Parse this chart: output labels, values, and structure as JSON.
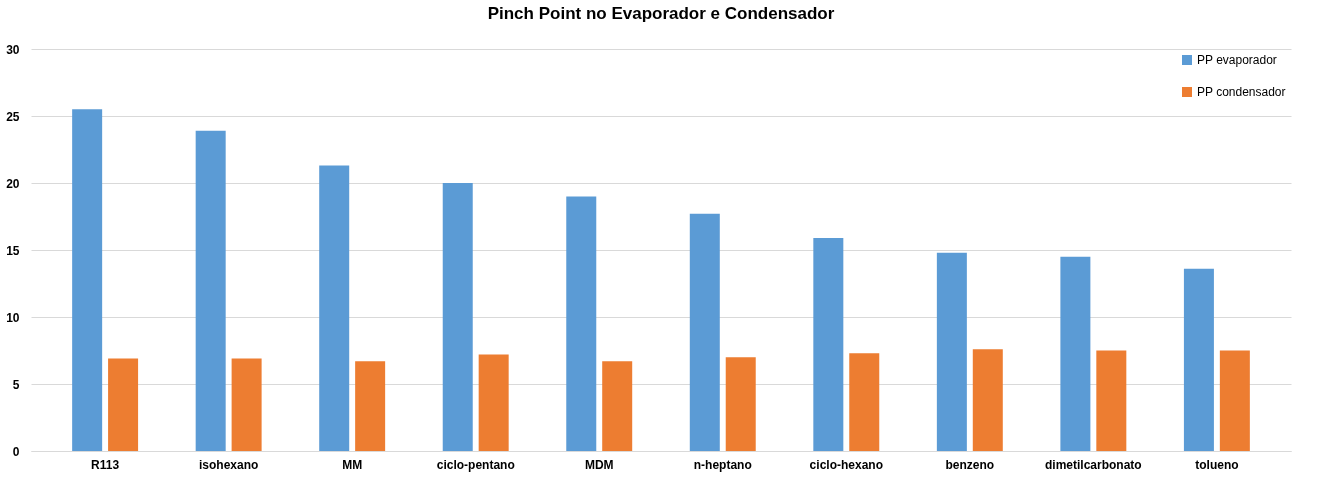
{
  "chart_data": {
    "type": "bar",
    "title": "Pinch Point no Evaporador e Condensador",
    "categories": [
      "R113",
      "isohexano",
      "MM",
      "ciclo-pentano",
      "MDM",
      "n-heptano",
      "ciclo-hexano",
      "benzeno",
      "dimetilcarbonato",
      "tolueno"
    ],
    "series": [
      {
        "name": "PP evaporador",
        "color": "#5b9bd5",
        "values": [
          25.5,
          23.9,
          21.3,
          20.0,
          19.0,
          17.7,
          15.9,
          14.8,
          14.5,
          13.6
        ]
      },
      {
        "name": "PP condensador",
        "color": "#ed7d31",
        "values": [
          6.9,
          6.9,
          6.7,
          7.2,
          6.7,
          7.0,
          7.3,
          7.6,
          7.5,
          7.5
        ]
      }
    ],
    "ylim": [
      0,
      30
    ],
    "yticks": [
      0,
      5,
      10,
      15,
      20,
      25,
      30
    ],
    "grid": "y",
    "legend": "top right"
  }
}
